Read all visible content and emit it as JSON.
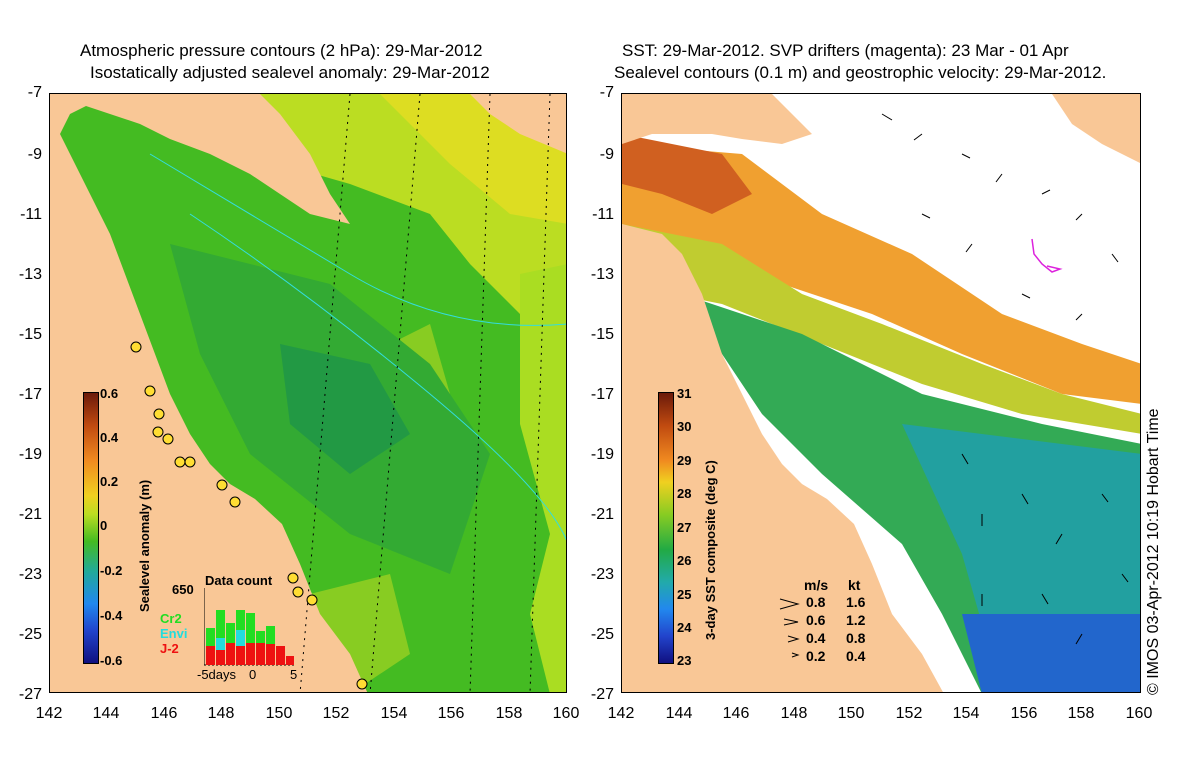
{
  "left_panel": {
    "title_line1": "Atmospheric pressure contours (2 hPa): 29-Mar-2012",
    "title_line2": "Isostatically adjusted sealevel anomaly: 29-Mar-2012",
    "colorbar": {
      "label": "Sealevel anomaly (m)",
      "ticks": [
        "0.6",
        "0.4",
        "0.2",
        "0",
        "-0.2",
        "-0.4",
        "-0.6"
      ]
    },
    "inset": {
      "title": "Data count",
      "ymax_label": "650",
      "series": [
        "Cr2",
        "Envi",
        "J-2"
      ],
      "series_colors": [
        "#22dd22",
        "#22dddd",
        "#ee1111"
      ],
      "xticks": [
        "-5days",
        "0",
        "5"
      ]
    }
  },
  "right_panel": {
    "title_line1": "SST: 29-Mar-2012. SVP drifters (magenta): 23 Mar - 01 Apr",
    "title_line2": "Sealevel contours (0.1 m) and geostrophic velocity: 29-Mar-2012.",
    "colorbar": {
      "label": "3-day SST composite (deg C)",
      "ticks": [
        "31",
        "30",
        "29",
        "28",
        "27",
        "26",
        "25",
        "24",
        "23"
      ]
    },
    "velocity_legend": {
      "header_ms": "m/s",
      "header_kt": "kt",
      "rows": [
        {
          "ms": "0.8",
          "kt": "1.6"
        },
        {
          "ms": "0.6",
          "kt": "1.2"
        },
        {
          "ms": "0.4",
          "kt": "0.8"
        },
        {
          "ms": "0.2",
          "kt": "0.4"
        }
      ]
    }
  },
  "axes": {
    "y_ticks": [
      "-7",
      "-9",
      "-11",
      "-13",
      "-15",
      "-17",
      "-19",
      "-21",
      "-23",
      "-25",
      "-27"
    ],
    "x_ticks": [
      "142",
      "144",
      "146",
      "148",
      "150",
      "152",
      "154",
      "156",
      "158",
      "160"
    ]
  },
  "copyright": "© IMOS 03-Apr-2012 10:19 Hobart Time",
  "colors": {
    "land": "#f9c796",
    "sla_main": "#44bb22",
    "sla_high": "#ccdd22",
    "sst_warm": "#f0a030",
    "sst_cool": "#22aa66",
    "drifter": "#dd22dd"
  }
}
